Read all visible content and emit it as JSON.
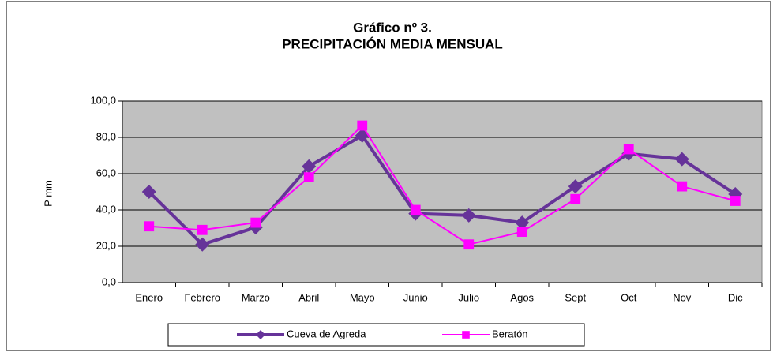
{
  "chart_data": {
    "type": "line",
    "title": [
      "Gráfico nº 3.",
      "PRECIPITACIÓN MEDIA MENSUAL"
    ],
    "ylabel": "P mm",
    "categories": [
      "Enero",
      "Febrero",
      "Marzo",
      "Abril",
      "Mayo",
      "Junio",
      "Julio",
      "Agos",
      "Sept",
      "Oct",
      "Nov",
      "Dic"
    ],
    "series": [
      {
        "name": "Cueva de Agreda",
        "color": "#663399",
        "marker": "diamond",
        "values": [
          50,
          21,
          30.4,
          64,
          81,
          38,
          37,
          33,
          53,
          71,
          68,
          48.7
        ]
      },
      {
        "name": "Beratón",
        "color": "#ff00ff",
        "marker": "square",
        "values": [
          31,
          29,
          33,
          58,
          86.5,
          40,
          21,
          28,
          46,
          73.5,
          53,
          45
        ]
      }
    ],
    "ylim": [
      0,
      100
    ],
    "yticks": [
      {
        "value": 0,
        "label": "0,0"
      },
      {
        "value": 20,
        "label": "20,0"
      },
      {
        "value": 40,
        "label": "40,0"
      },
      {
        "value": 60,
        "label": "60,0"
      },
      {
        "value": 80,
        "label": "80,0"
      },
      {
        "value": 100,
        "label": "100,0"
      }
    ],
    "grid": true,
    "legend": "bottom"
  }
}
